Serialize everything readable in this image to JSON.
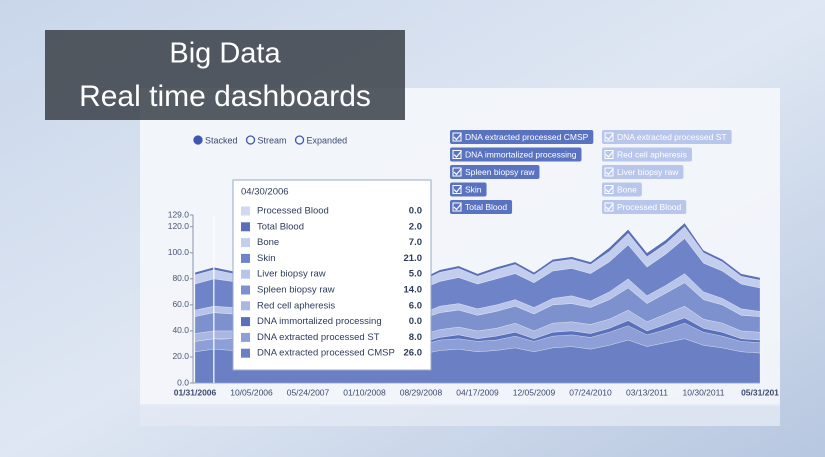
{
  "banner": {
    "line1": "Big Data",
    "line2": "Real time dashboards"
  },
  "chart_data": {
    "type": "stacked_area",
    "modes": [
      {
        "label": "Stacked",
        "selected": true
      },
      {
        "label": "Stream",
        "selected": false
      },
      {
        "label": "Expanded",
        "selected": false
      }
    ],
    "categories": [
      "01/31/2006",
      null,
      null,
      "10/05/2006",
      null,
      null,
      "05/24/2007",
      null,
      null,
      "01/10/2008",
      null,
      null,
      "08/29/2008",
      null,
      null,
      "04/17/2009",
      null,
      null,
      "12/05/2009",
      null,
      null,
      "07/24/2010",
      null,
      null,
      "03/13/2011",
      null,
      null,
      "10/30/2011",
      null,
      null,
      "05/31/201"
    ],
    "ylim": [
      0,
      129
    ],
    "yticks": [
      {
        "value": 0,
        "label": "0.0"
      },
      {
        "value": 20,
        "label": "20.0"
      },
      {
        "value": 40,
        "label": "40.0"
      },
      {
        "value": 60,
        "label": "60.0"
      },
      {
        "value": 80,
        "label": "80.0"
      },
      {
        "value": 100,
        "label": "100.0"
      },
      {
        "value": 120,
        "label": "120.0"
      },
      {
        "value": 129,
        "label": "129.0"
      }
    ],
    "series": [
      {
        "name": "Processed Blood",
        "color": "#d0d8f3",
        "checked": false,
        "values": [
          0,
          0,
          0,
          0,
          0,
          0,
          0,
          0,
          0,
          0,
          0,
          0,
          0,
          0,
          0,
          0,
          0,
          0,
          0,
          0,
          0,
          0,
          0,
          0,
          0,
          0,
          0,
          0,
          0,
          0,
          0
        ]
      },
      {
        "name": "Total Blood",
        "color": "#5b6fb8",
        "checked": true,
        "values": [
          2,
          2,
          2,
          2,
          2,
          2,
          2,
          2,
          2,
          2,
          2,
          2,
          2,
          2,
          2,
          2,
          2,
          2,
          2,
          2,
          2,
          2,
          3,
          3,
          3,
          3,
          3,
          2,
          2,
          2,
          2
        ]
      },
      {
        "name": "Bone",
        "color": "#c3cdee",
        "checked": false,
        "values": [
          7,
          7,
          6,
          6,
          6,
          6,
          6,
          6,
          6,
          6,
          6,
          7,
          6,
          7,
          7,
          6,
          7,
          7,
          6,
          7,
          7,
          7,
          8,
          9,
          8,
          8,
          9,
          8,
          7,
          6,
          6
        ]
      },
      {
        "name": "Skin",
        "color": "#6f84c8",
        "checked": true,
        "values": [
          20,
          21,
          20,
          19,
          19,
          19,
          18,
          18,
          18,
          18,
          18,
          19,
          19,
          19,
          20,
          19,
          20,
          20,
          19,
          21,
          21,
          21,
          23,
          26,
          22,
          24,
          27,
          22,
          21,
          19,
          18
        ]
      },
      {
        "name": "Liver biopsy raw",
        "color": "#b8c4ea",
        "checked": false,
        "values": [
          5,
          5,
          5,
          5,
          4,
          5,
          4,
          4,
          4,
          4,
          5,
          5,
          4,
          5,
          5,
          5,
          5,
          5,
          5,
          5,
          6,
          5,
          6,
          7,
          6,
          6,
          7,
          6,
          5,
          5,
          4
        ]
      },
      {
        "name": "Spleen biopsy raw",
        "color": "#7d91cf",
        "checked": true,
        "values": [
          13,
          14,
          13,
          12,
          12,
          12,
          11,
          11,
          12,
          11,
          12,
          12,
          12,
          13,
          13,
          12,
          13,
          13,
          13,
          14,
          14,
          13,
          15,
          17,
          14,
          16,
          18,
          15,
          14,
          12,
          12
        ]
      },
      {
        "name": "Red cell apheresis",
        "color": "#a9b7e2",
        "checked": false,
        "values": [
          6,
          6,
          6,
          5,
          5,
          6,
          5,
          5,
          5,
          5,
          6,
          6,
          6,
          6,
          6,
          6,
          6,
          7,
          6,
          7,
          7,
          7,
          7,
          8,
          7,
          8,
          9,
          7,
          7,
          6,
          6
        ]
      },
      {
        "name": "DNA immortalized processing",
        "color": "#5a70bb",
        "checked": true,
        "values": [
          0,
          0,
          1,
          1,
          1,
          1,
          1,
          1,
          2,
          2,
          2,
          2,
          2,
          2,
          3,
          2,
          3,
          3,
          2,
          3,
          3,
          3,
          3,
          4,
          3,
          4,
          4,
          3,
          3,
          2,
          2
        ]
      },
      {
        "name": "DNA extracted processed ST",
        "color": "#8d9fd6",
        "checked": false,
        "values": [
          8,
          8,
          8,
          7,
          7,
          8,
          7,
          7,
          7,
          7,
          7,
          8,
          7,
          8,
          8,
          8,
          8,
          9,
          8,
          9,
          9,
          9,
          10,
          11,
          9,
          10,
          12,
          10,
          9,
          8,
          8
        ]
      },
      {
        "name": "DNA extracted processed CMSP",
        "color": "#6b80c4",
        "checked": true,
        "values": [
          24,
          26,
          25,
          23,
          22,
          24,
          22,
          20,
          22,
          21,
          23,
          24,
          22,
          25,
          26,
          24,
          25,
          27,
          24,
          27,
          28,
          26,
          29,
          33,
          28,
          31,
          34,
          29,
          27,
          24,
          23
        ]
      }
    ],
    "tooltip": {
      "title": "04/30/2006",
      "values": [
        "0.0",
        "2.0",
        "7.0",
        "21.0",
        "5.0",
        "14.0",
        "6.0",
        "0.0",
        "8.0",
        "26.0"
      ]
    }
  }
}
